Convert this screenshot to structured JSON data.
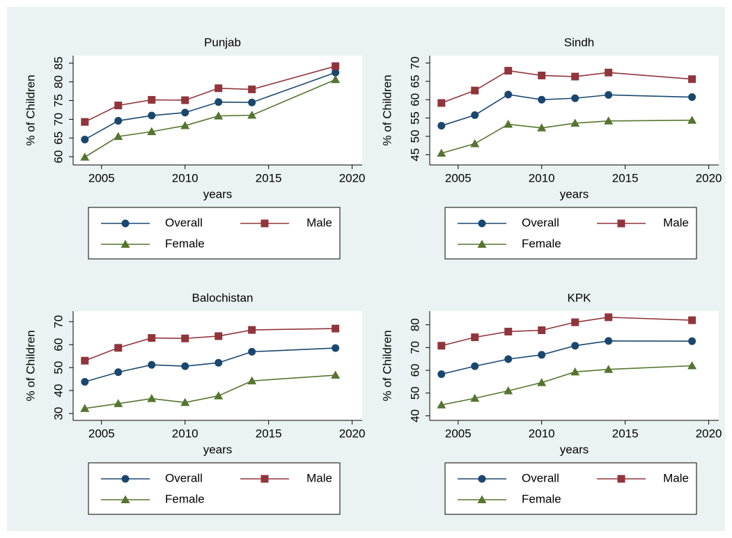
{
  "chart_data": [
    {
      "type": "line",
      "title": "Punjab",
      "xlabel": "years",
      "ylabel": "% of Children",
      "x": [
        2004,
        2006,
        2008,
        2010,
        2012,
        2014,
        2019
      ],
      "series": [
        {
          "name": "Overall",
          "color": "#1a476f",
          "values": [
            64.6,
            69.6,
            71.0,
            71.8,
            74.6,
            74.5,
            82.5
          ]
        },
        {
          "name": "Male",
          "color": "#90353b",
          "values": [
            69.3,
            73.7,
            75.2,
            75.1,
            78.3,
            78.0,
            84.2
          ]
        },
        {
          "name": "Female",
          "color": "#55752f",
          "values": [
            59.9,
            65.4,
            66.7,
            68.3,
            70.9,
            71.1,
            80.6
          ]
        }
      ],
      "xlim": [
        2003.3,
        2020.6
      ],
      "xticks": [
        2005,
        2010,
        2015,
        2020
      ],
      "ylim": [
        57.8,
        87
      ],
      "yticks": [
        60,
        65,
        70,
        75,
        80,
        85
      ],
      "grid": false
    },
    {
      "type": "line",
      "title": "Sindh",
      "xlabel": "years",
      "ylabel": "% of Children",
      "x": [
        2004,
        2006,
        2008,
        2010,
        2012,
        2014,
        2019
      ],
      "series": [
        {
          "name": "Overall",
          "color": "#1a476f",
          "values": [
            52.9,
            55.8,
            61.4,
            60.0,
            60.4,
            61.3,
            60.7
          ]
        },
        {
          "name": "Male",
          "color": "#90353b",
          "values": [
            59.1,
            62.5,
            67.9,
            66.6,
            66.3,
            67.4,
            65.6
          ]
        },
        {
          "name": "Female",
          "color": "#55752f",
          "values": [
            45.4,
            48.0,
            53.3,
            52.3,
            53.6,
            54.2,
            54.4
          ]
        }
      ],
      "xlim": [
        2003.3,
        2020.6
      ],
      "xticks": [
        2005,
        2010,
        2015,
        2020
      ],
      "ylim": [
        42.2,
        72
      ],
      "yticks": [
        45,
        50,
        55,
        60,
        65,
        70
      ],
      "grid": false
    },
    {
      "type": "line",
      "title": "Balochistan",
      "xlabel": "years",
      "ylabel": "% of Children",
      "x": [
        2004,
        2006,
        2008,
        2010,
        2012,
        2014,
        2019
      ],
      "series": [
        {
          "name": "Overall",
          "color": "#1a476f",
          "values": [
            43.8,
            48.0,
            51.2,
            50.6,
            52.1,
            56.9,
            58.5
          ]
        },
        {
          "name": "Male",
          "color": "#90353b",
          "values": [
            53.0,
            58.6,
            62.9,
            62.7,
            63.7,
            66.4,
            67.0
          ]
        },
        {
          "name": "Female",
          "color": "#55752f",
          "values": [
            32.2,
            34.3,
            36.5,
            34.8,
            37.7,
            44.2,
            46.7
          ]
        }
      ],
      "xlim": [
        2003.3,
        2020.6
      ],
      "xticks": [
        2005,
        2010,
        2015,
        2020
      ],
      "ylim": [
        27,
        74.6
      ],
      "yticks": [
        30,
        40,
        50,
        60,
        70
      ],
      "grid": false
    },
    {
      "type": "line",
      "title": "KPK",
      "xlabel": "years",
      "ylabel": "% of Children",
      "x": [
        2004,
        2006,
        2008,
        2010,
        2012,
        2014,
        2019
      ],
      "series": [
        {
          "name": "Overall",
          "color": "#1a476f",
          "values": [
            58.3,
            61.8,
            64.9,
            66.8,
            70.8,
            72.9,
            72.8
          ]
        },
        {
          "name": "Male",
          "color": "#90353b",
          "values": [
            70.8,
            74.5,
            77.0,
            77.6,
            81.1,
            83.3,
            82.0
          ]
        },
        {
          "name": "Female",
          "color": "#55752f",
          "values": [
            44.8,
            47.7,
            51.0,
            54.6,
            59.3,
            60.4,
            62.0
          ]
        }
      ],
      "xlim": [
        2003.3,
        2020.6
      ],
      "xticks": [
        2005,
        2010,
        2015,
        2020
      ],
      "ylim": [
        38,
        86
      ],
      "yticks": [
        40,
        50,
        60,
        70,
        80
      ],
      "grid": false
    }
  ]
}
